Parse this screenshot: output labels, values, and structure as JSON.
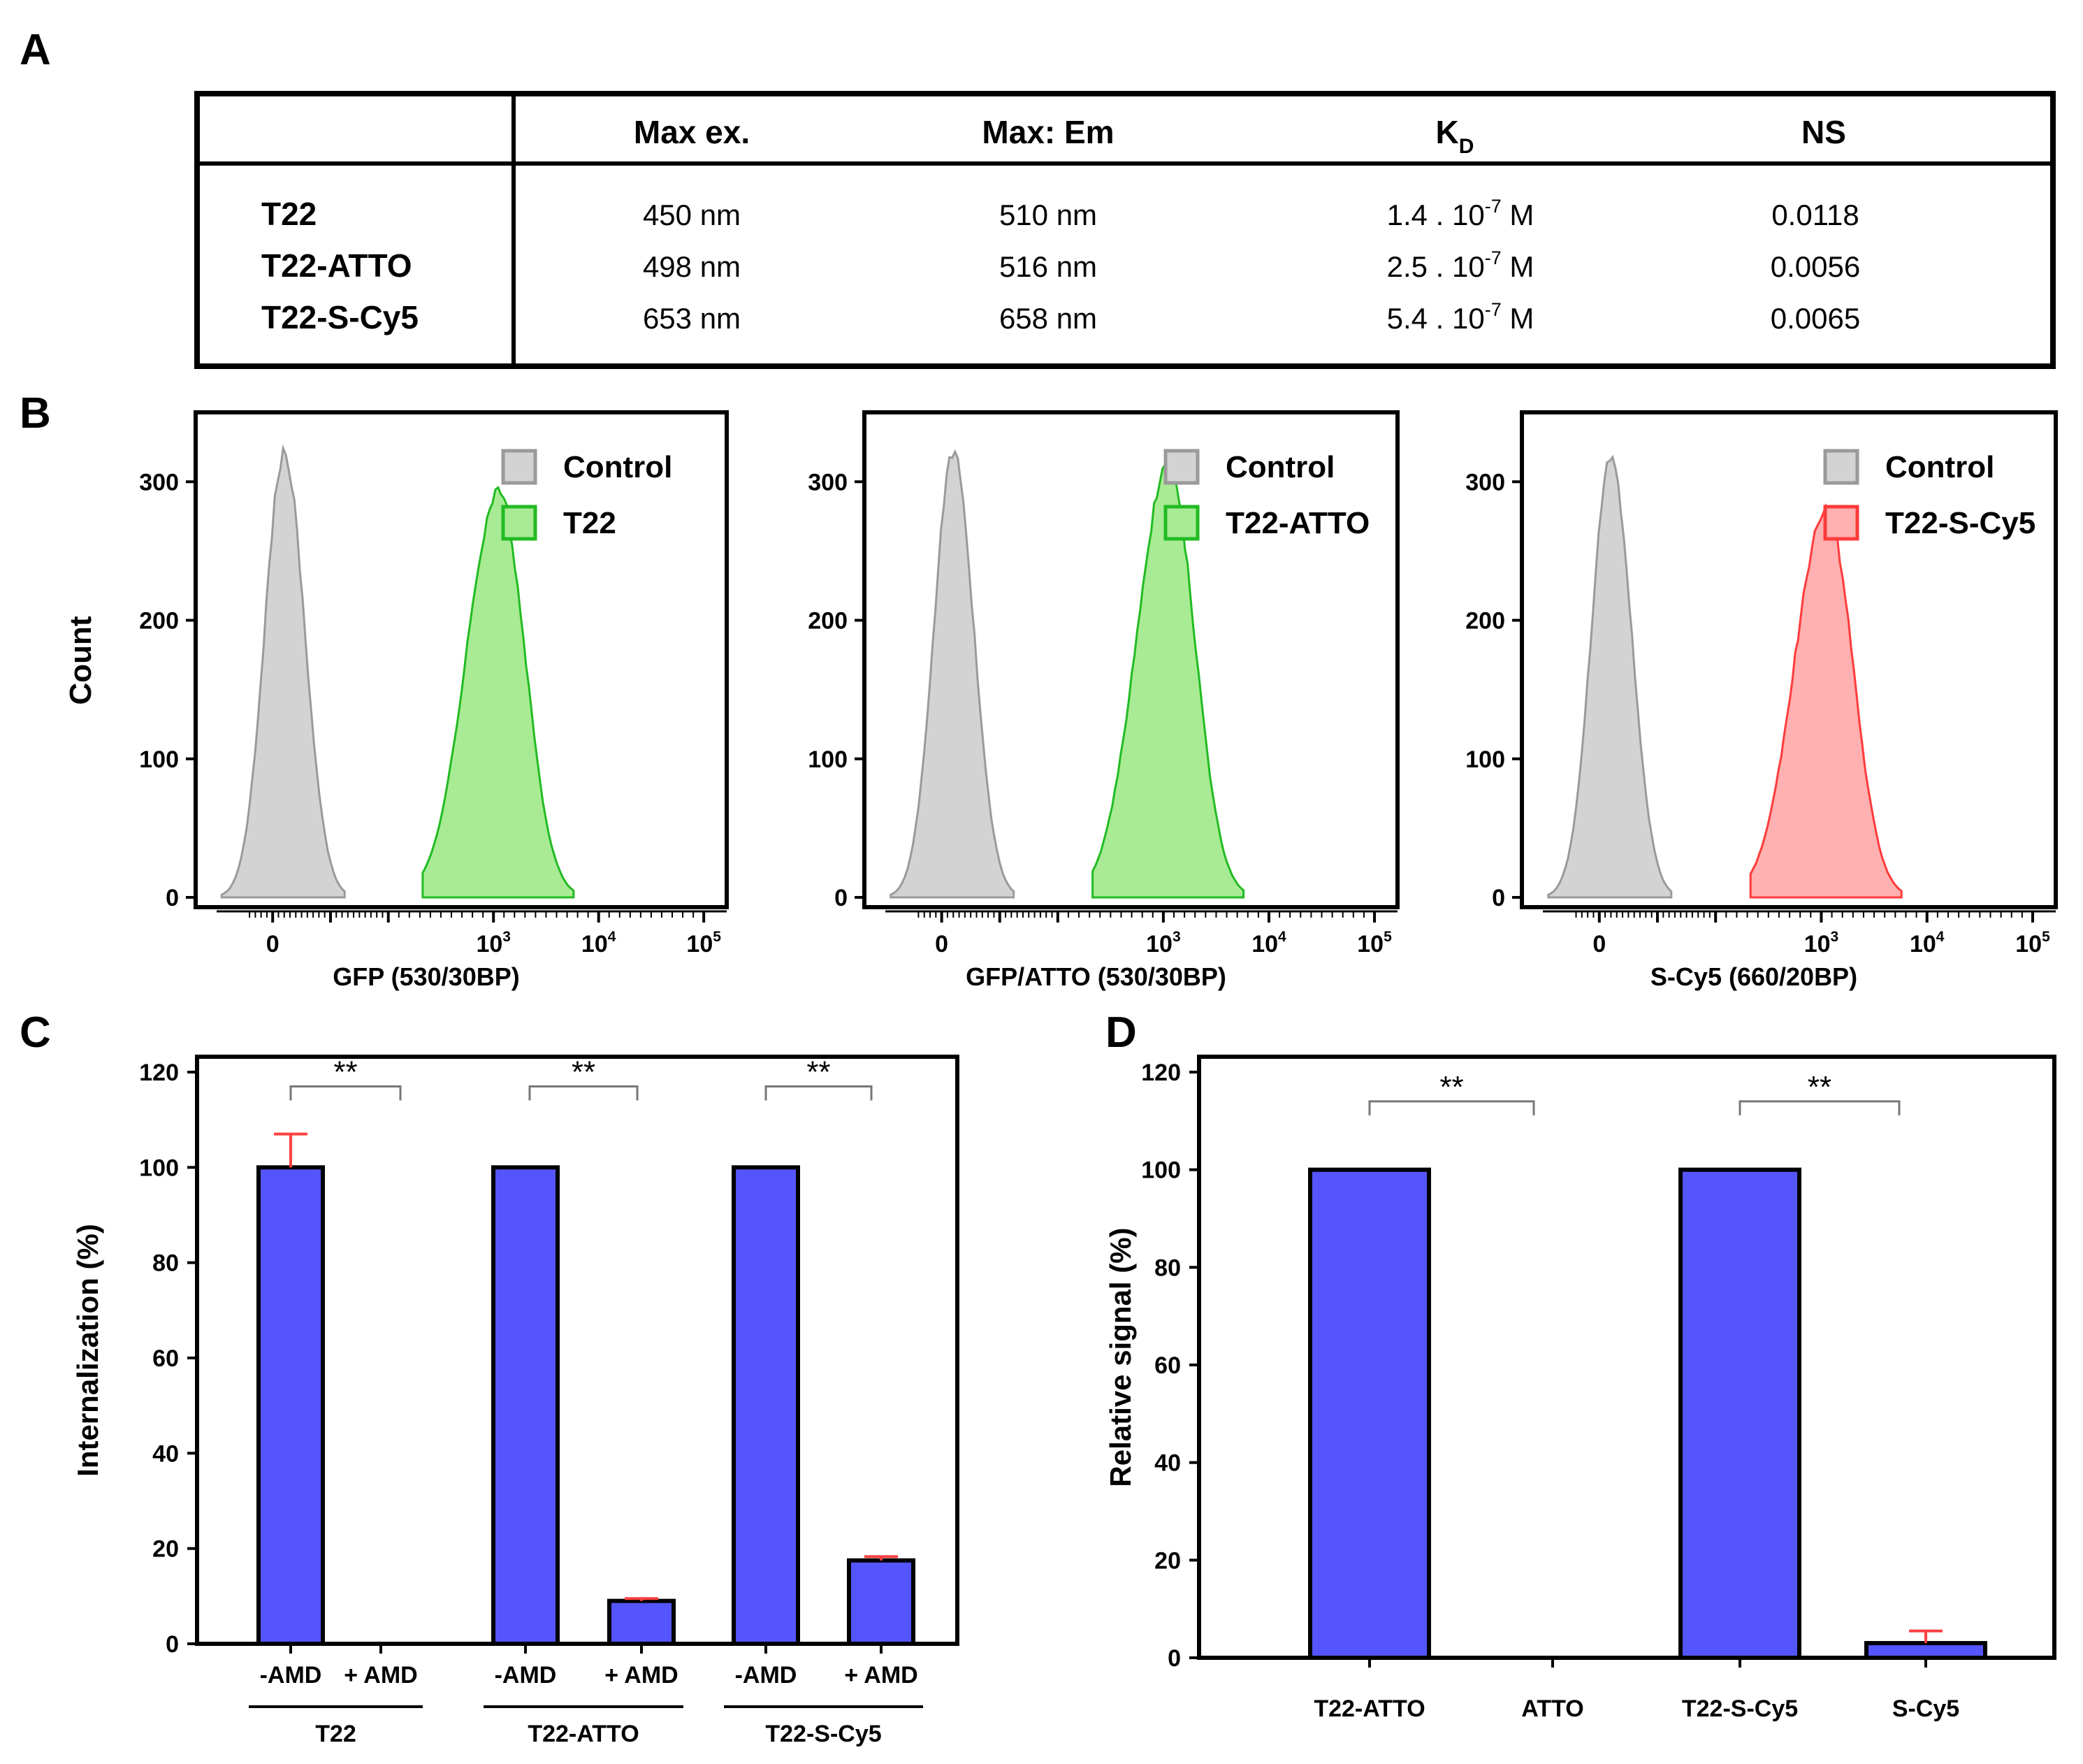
{
  "panel_labels": {
    "a": "A",
    "b": "B",
    "c": "C",
    "d": "D"
  },
  "colors": {
    "bar_fill": "#5555ff",
    "error_bar": "#ff4040",
    "control_fill": "#d3d3d3",
    "control_line": "#9a9a9a",
    "green_fill": "#a8eb94",
    "green_line": "#22bb22",
    "red_fill": "#ffb0b0",
    "red_line": "#ff3b3b"
  },
  "table": {
    "headers": [
      "",
      "Max ex.",
      "Max: Em",
      "K",
      "NS"
    ],
    "kd_subscript": "D",
    "rows": [
      {
        "name": "T22",
        "ex": "450 nm",
        "em": "510 nm",
        "kd_base": "1.4 . 10",
        "kd_exp": "-7",
        "kd_unit": " M",
        "ns": "0.0118"
      },
      {
        "name": "T22-ATTO",
        "ex": "498 nm",
        "em": "516 nm",
        "kd_base": "2.5 . 10",
        "kd_exp": "-7",
        "kd_unit": " M",
        "ns": "0.0056"
      },
      {
        "name": "T22-S-Cy5",
        "ex": "653 nm",
        "em": "658 nm",
        "kd_base": "5.4 . 10",
        "kd_exp": "-7",
        "kd_unit": " M",
        "ns": "0.0065"
      }
    ]
  },
  "chart_data": [
    {
      "type": "area",
      "panel": "B1",
      "ylabel": "Count",
      "xlabel": "GFP (530/30BP)",
      "x_scale": "biexponential",
      "x_ticks": [
        "0",
        "10^3",
        "10^4",
        "10^5"
      ],
      "y_ticks": [
        0,
        100,
        200,
        300
      ],
      "ylim": [
        0,
        340
      ],
      "legend": [
        "Control",
        "T22"
      ],
      "series": [
        {
          "name": "Control",
          "color": "control",
          "peak_x": "~10^2",
          "peak_count": 320
        },
        {
          "name": "T22",
          "color": "green",
          "peak_x": "~10^3",
          "peak_count": 292
        }
      ]
    },
    {
      "type": "area",
      "panel": "B2",
      "ylabel": "",
      "xlabel": "GFP/ATTO (530/30BP)",
      "x_scale": "biexponential",
      "x_ticks": [
        "0",
        "10^3",
        "10^4",
        "10^5"
      ],
      "y_ticks": [
        0,
        100,
        200,
        300
      ],
      "ylim": [
        0,
        340
      ],
      "legend": [
        "Control",
        "T22-ATTO"
      ],
      "series": [
        {
          "name": "Control",
          "color": "control",
          "peak_x": "~10^2",
          "peak_count": 320
        },
        {
          "name": "T22-ATTO",
          "color": "green",
          "peak_x": "~10^3",
          "peak_count": 310
        }
      ]
    },
    {
      "type": "area",
      "panel": "B3",
      "ylabel": "",
      "xlabel": "S-Cy5 (660/20BP)",
      "x_scale": "biexponential",
      "x_ticks": [
        "0",
        "10^3",
        "10^4",
        "10^5"
      ],
      "y_ticks": [
        0,
        100,
        200,
        300
      ],
      "ylim": [
        0,
        340
      ],
      "legend": [
        "Control",
        "T22-S-Cy5"
      ],
      "series": [
        {
          "name": "Control",
          "color": "control",
          "peak_x": "~10^2",
          "peak_count": 318
        },
        {
          "name": "T22-S-Cy5",
          "color": "red",
          "peak_x": "~10^3",
          "peak_count": 280
        }
      ]
    },
    {
      "type": "bar",
      "panel": "C",
      "ylabel": "Internalization (%)",
      "ylim": [
        0,
        120
      ],
      "y_ticks": [
        0,
        20,
        40,
        60,
        80,
        100,
        120
      ],
      "categories": [
        "-AMD",
        "+ AMD",
        "-AMD",
        "+ AMD",
        "-AMD",
        "+ AMD"
      ],
      "groups": [
        "T22",
        "T22-ATTO",
        "T22-S-Cy5"
      ],
      "values": [
        100,
        0,
        100,
        9,
        100,
        17.5
      ],
      "errors": [
        7,
        0,
        0,
        0.5,
        0,
        0.8
      ],
      "significance": [
        "**",
        "**",
        "**"
      ]
    },
    {
      "type": "bar",
      "panel": "D",
      "ylabel": "Relative signal (%)",
      "ylim": [
        0,
        120
      ],
      "y_ticks": [
        0,
        20,
        40,
        60,
        80,
        100,
        120
      ],
      "categories": [
        "T22-ATTO",
        "ATTO",
        "T22-S-Cy5",
        "S-Cy5"
      ],
      "values": [
        100,
        0,
        100,
        3
      ],
      "errors": [
        0,
        0,
        0,
        2.5
      ],
      "significance": [
        "**",
        "**"
      ]
    }
  ]
}
